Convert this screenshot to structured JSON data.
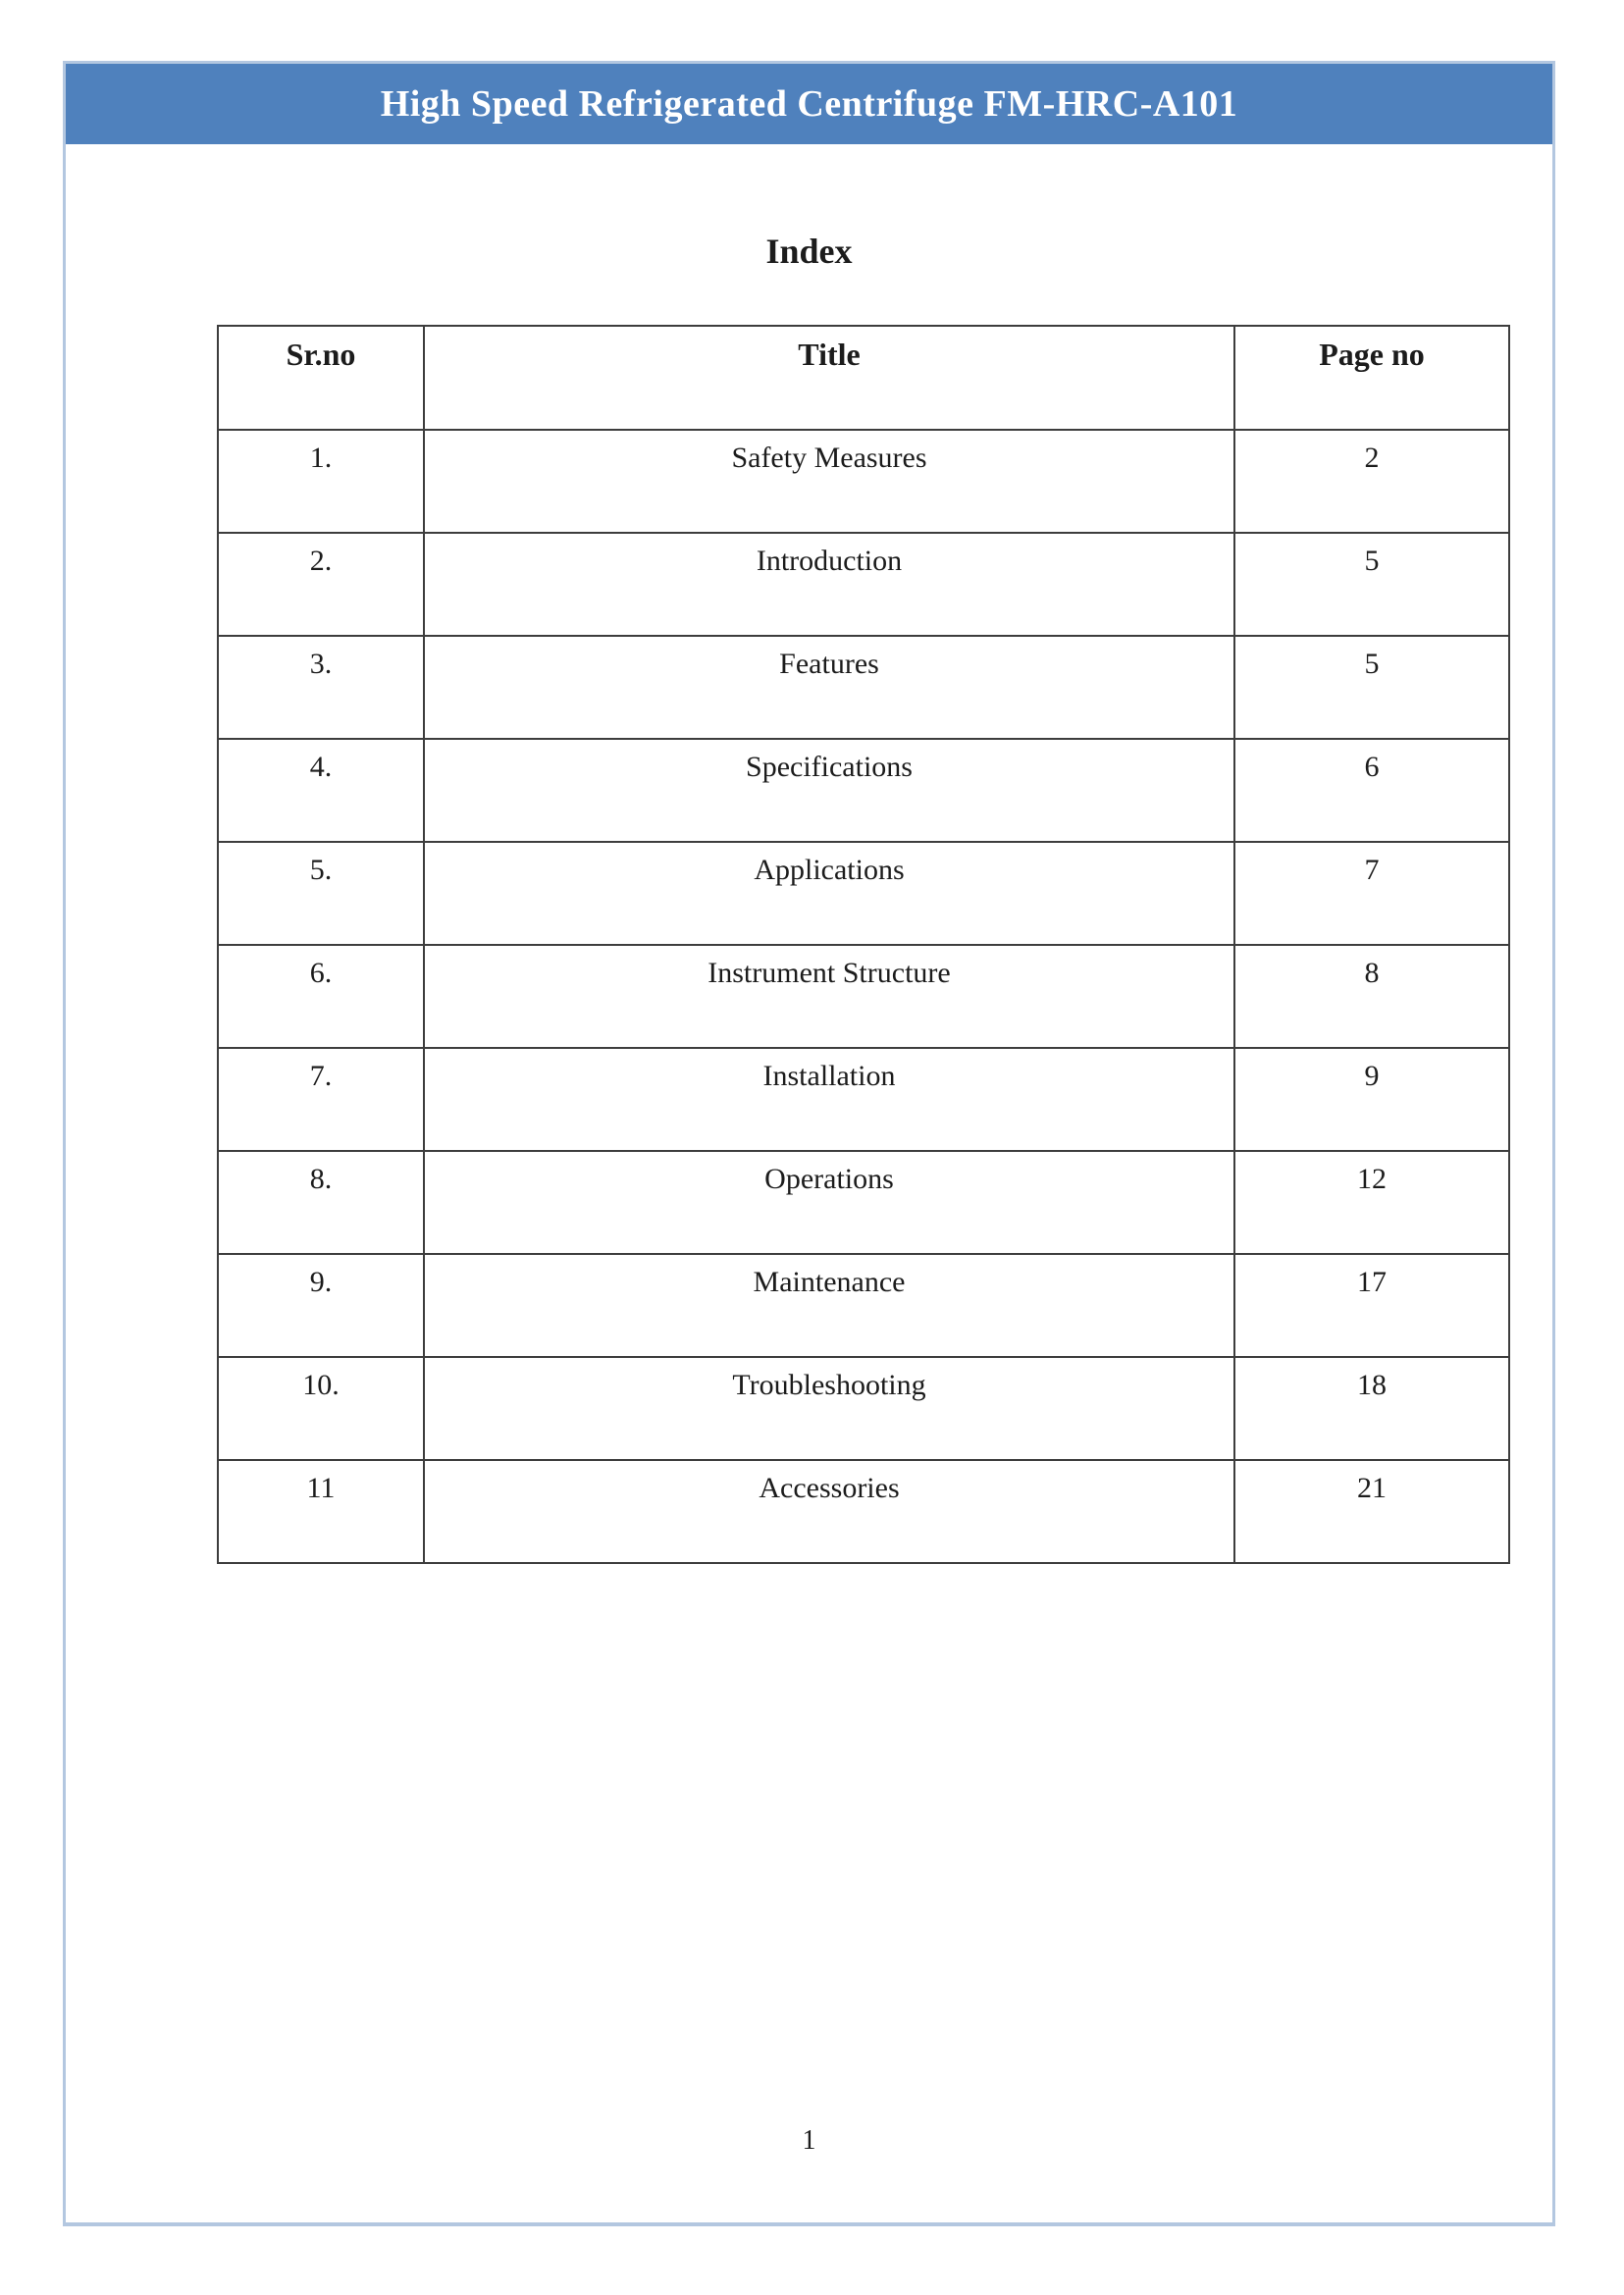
{
  "page": {
    "banner_title": "High Speed Refrigerated Centrifuge FM-HRC-A101",
    "heading": "Index",
    "page_number": "1"
  },
  "toc": {
    "headers": [
      "Sr.no",
      "Title",
      "Page no"
    ],
    "rows": [
      [
        "1.",
        "Safety Measures",
        "2"
      ],
      [
        "2.",
        "Introduction",
        "5"
      ],
      [
        "3.",
        "Features",
        "5"
      ],
      [
        "4.",
        "Specifications",
        "6"
      ],
      [
        "5.",
        "Applications",
        "7"
      ],
      [
        "6.",
        "Instrument Structure",
        "8"
      ],
      [
        "7.",
        "Installation",
        "9"
      ],
      [
        "8.",
        "Operations",
        "12"
      ],
      [
        "9.",
        "Maintenance",
        "17"
      ],
      [
        "10.",
        "Troubleshooting",
        "18"
      ],
      [
        "11",
        "Accessories",
        "21"
      ]
    ]
  },
  "colors": {
    "banner_bg": "#4f81bd",
    "banner_text": "#ffffff",
    "page_border": "#b3c7e0",
    "table_border": "#3d3d3d",
    "text": "#1c1c1c"
  }
}
